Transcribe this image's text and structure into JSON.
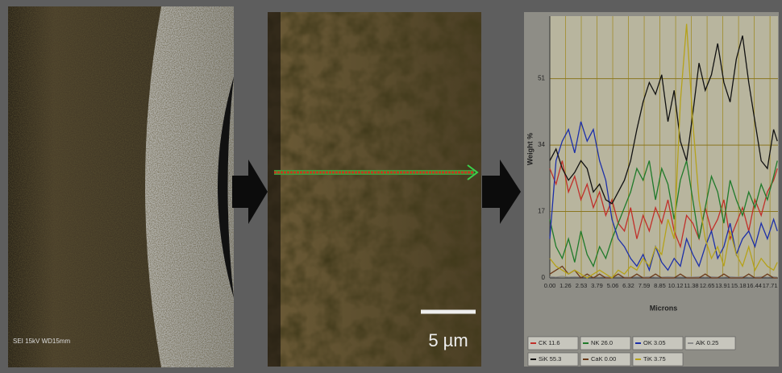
{
  "images": {
    "left_caption": "SEI   15kV   WD15mm",
    "scale_bar": "5 µm"
  },
  "chart_data": {
    "type": "line",
    "y_label": "Weight %",
    "x_label": "Microns",
    "x": [
      0,
      0.5,
      1,
      1.5,
      2,
      2.5,
      3,
      3.5,
      4,
      4.5,
      5,
      5.5,
      6,
      6.5,
      7,
      7.5,
      8,
      8.5,
      9,
      9.5,
      10,
      10.5,
      11,
      11.5,
      12,
      12.5,
      13,
      13.5,
      14,
      14.5,
      15,
      15.5,
      16,
      16.5,
      17,
      17.5,
      18,
      18.3
    ],
    "xlim": [
      0,
      18.35
    ],
    "xticks": [
      {
        "value": 0,
        "label": "0.00"
      },
      1.26,
      2.53,
      3.79,
      5.06,
      6.32,
      7.59,
      8.85,
      10.12,
      11.38,
      12.65,
      13.91,
      15.18,
      16.44,
      17.71
    ],
    "ylim": [
      0,
      67
    ],
    "yticks": [
      0,
      17,
      34,
      51
    ],
    "grid": true,
    "series": [
      {
        "name": "CK 11.6",
        "color": "#c0302a",
        "values": [
          28,
          24,
          30,
          22,
          26,
          20,
          24,
          18,
          22,
          16,
          20,
          14,
          12,
          18,
          10,
          16,
          12,
          18,
          14,
          20,
          12,
          8,
          16,
          14,
          10,
          18,
          12,
          15,
          20,
          10,
          14,
          18,
          12,
          20,
          16,
          22,
          25,
          28
        ]
      },
      {
        "name": "NK 26.0",
        "color": "#1f7a2a",
        "values": [
          15,
          8,
          5,
          10,
          4,
          12,
          6,
          3,
          8,
          5,
          10,
          14,
          18,
          22,
          28,
          25,
          30,
          20,
          28,
          24,
          15,
          25,
          30,
          20,
          10,
          18,
          26,
          22,
          14,
          25,
          20,
          16,
          22,
          18,
          24,
          20,
          26,
          30
        ]
      },
      {
        "name": "OK 3.05",
        "color": "#1c2fa8",
        "values": [
          10,
          30,
          35,
          38,
          32,
          40,
          35,
          38,
          30,
          25,
          15,
          10,
          8,
          5,
          3,
          6,
          2,
          8,
          4,
          2,
          5,
          3,
          10,
          6,
          3,
          8,
          12,
          5,
          8,
          14,
          6,
          10,
          12,
          8,
          14,
          10,
          15,
          12
        ]
      },
      {
        "name": "AlK 0.25",
        "color": "#8a8a8a",
        "values": [
          0.3,
          0.2,
          0.4,
          0.2,
          0.3,
          0.2,
          0.3,
          0.2,
          0.2,
          0.3,
          0.2,
          0.3,
          0.2,
          0.2,
          0.3,
          0.2,
          0.3,
          0.2,
          0.2,
          0.3,
          0.2,
          0.3,
          0.2,
          0.2,
          0.3,
          0.2,
          0.3,
          0.2,
          0.2,
          0.3,
          0.2,
          0.3,
          0.2,
          0.2,
          0.3,
          0.2,
          0.3,
          0.2
        ]
      },
      {
        "name": "SiK 55.3",
        "color": "#111111",
        "values": [
          30,
          33,
          28,
          25,
          27,
          30,
          28,
          22,
          24,
          20,
          19,
          22,
          25,
          30,
          38,
          45,
          50,
          47,
          52,
          40,
          48,
          35,
          30,
          42,
          55,
          48,
          52,
          60,
          50,
          45,
          56,
          62,
          50,
          40,
          30,
          28,
          38,
          35
        ]
      },
      {
        "name": "CaK 0.00",
        "color": "#6b3a1a",
        "values": [
          1,
          2,
          3,
          1,
          2,
          0,
          1,
          0,
          1,
          0,
          0,
          1,
          0,
          0,
          1,
          0,
          0,
          1,
          0,
          0,
          0,
          1,
          0,
          0,
          0,
          1,
          0,
          0,
          1,
          0,
          0,
          0,
          1,
          0,
          0,
          1,
          0,
          0
        ]
      },
      {
        "name": "TiK 3.75",
        "color": "#b5a21a",
        "values": [
          5,
          3,
          2,
          1,
          2,
          1,
          0,
          1,
          2,
          1,
          0,
          2,
          1,
          3,
          2,
          5,
          3,
          8,
          6,
          15,
          10,
          45,
          65,
          40,
          20,
          10,
          5,
          8,
          3,
          12,
          6,
          3,
          8,
          2,
          5,
          3,
          2,
          4
        ]
      }
    ]
  }
}
